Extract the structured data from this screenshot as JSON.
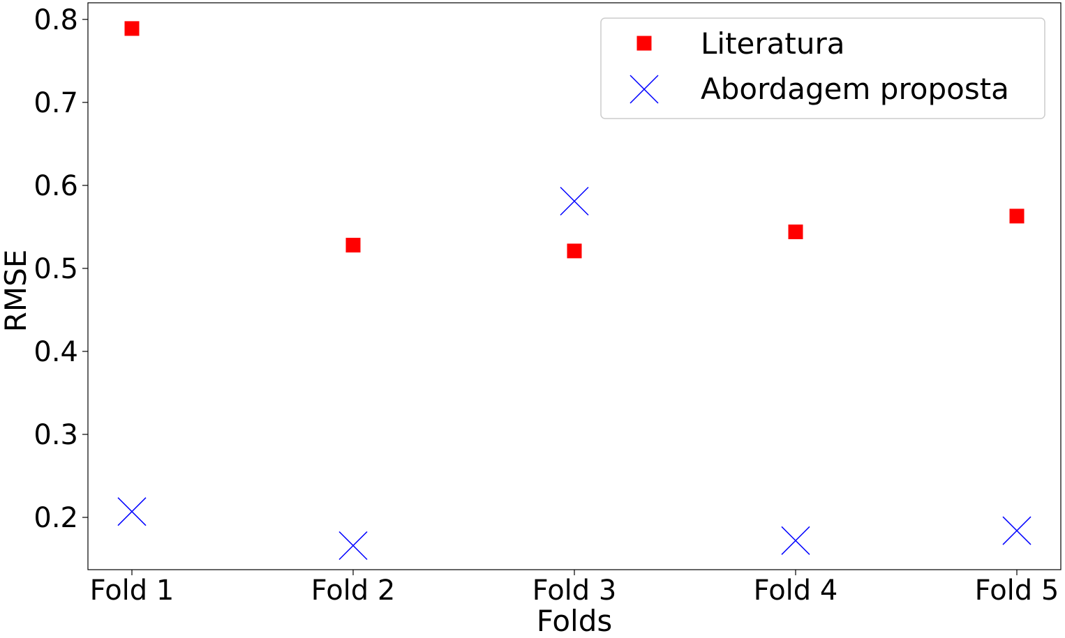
{
  "chart_data": {
    "type": "scatter",
    "title": "",
    "xlabel": "Folds",
    "ylabel": "RMSE",
    "categories": [
      "Fold 1",
      "Fold 2",
      "Fold 3",
      "Fold 4",
      "Fold 5"
    ],
    "ylim": [
      0.137,
      0.82
    ],
    "yticks": [
      "0.2",
      "0.3",
      "0.4",
      "0.5",
      "0.6",
      "0.7",
      "0.8"
    ],
    "grid": false,
    "legend_position": "top-right",
    "series": [
      {
        "name": "Literatura",
        "marker": "square",
        "color": "#ff0000",
        "values": [
          0.789,
          0.528,
          0.521,
          0.544,
          0.563
        ]
      },
      {
        "name": "Abordagem proposta",
        "marker": "x",
        "color": "#0000ff",
        "values": [
          0.207,
          0.166,
          0.581,
          0.172,
          0.184
        ]
      }
    ]
  }
}
